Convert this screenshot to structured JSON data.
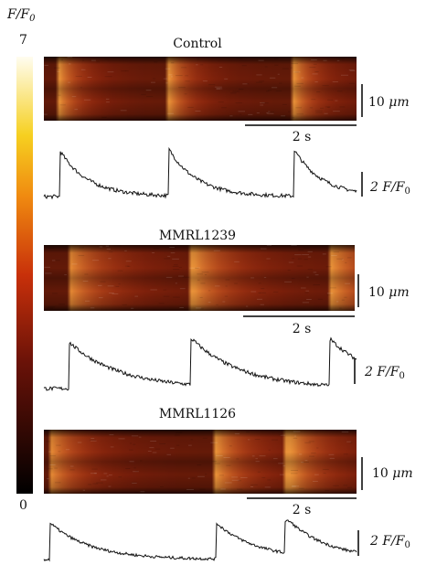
{
  "colorbar": {
    "label": {
      "main": "F/F",
      "sub": "0"
    },
    "max": "7",
    "min": "0"
  },
  "panels": [
    {
      "title": "Control",
      "space_scale": {
        "num": "10",
        "unit": "μm"
      },
      "time_scale": "2 s",
      "amp_scale": {
        "main": "2 F/F",
        "sub": "0"
      }
    },
    {
      "title": "MMRL1239",
      "space_scale": {
        "num": "10",
        "unit": "μm"
      },
      "time_scale": "2 s",
      "amp_scale": {
        "main": "2 F/F",
        "sub": "0"
      }
    },
    {
      "title": "MMRL1126",
      "space_scale": {
        "num": "10",
        "unit": "μm"
      },
      "time_scale": "2 s",
      "amp_scale": {
        "main": "2 F/F",
        "sub": "0"
      }
    }
  ]
}
